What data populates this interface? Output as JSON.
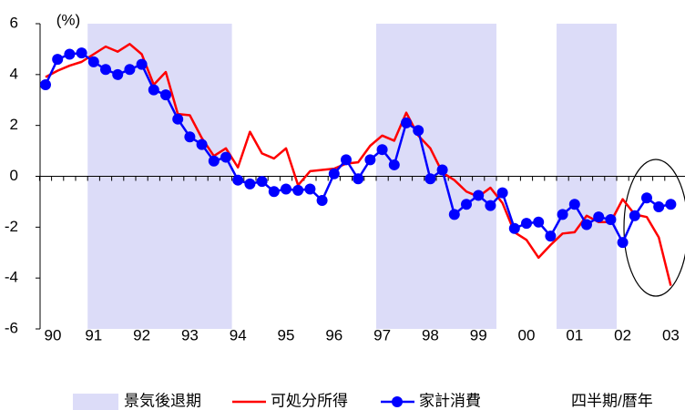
{
  "chart_data": {
    "type": "line",
    "unit_label": "(%)",
    "x_label": "四半期/暦年",
    "recession_label": "景気後退期",
    "recession_color": "#dcdcf8",
    "recessions": [
      [
        4,
        15
      ],
      [
        28,
        37
      ],
      [
        43,
        47
      ]
    ],
    "categories": [
      "90",
      null,
      null,
      null,
      "91",
      null,
      null,
      null,
      "92",
      null,
      null,
      null,
      "93",
      null,
      null,
      null,
      "94",
      null,
      null,
      null,
      "95",
      null,
      null,
      null,
      "96",
      null,
      null,
      null,
      "97",
      null,
      null,
      null,
      "98",
      null,
      null,
      null,
      "99",
      null,
      null,
      null,
      "00",
      null,
      null,
      null,
      "01",
      null,
      null,
      null,
      "02",
      null,
      null,
      null,
      "03"
    ],
    "series": [
      {
        "name": "可処分所得",
        "color": "#ff0000",
        "marker": false,
        "values": [
          3.9,
          4.15,
          4.35,
          4.5,
          4.8,
          5.1,
          4.9,
          5.2,
          4.8,
          3.6,
          4.1,
          2.45,
          2.4,
          1.5,
          0.8,
          1.1,
          0.35,
          1.75,
          0.9,
          0.7,
          1.1,
          -0.35,
          0.2,
          0.25,
          0.3,
          0.5,
          0.55,
          1.2,
          1.6,
          1.4,
          2.5,
          1.6,
          1.1,
          0.15,
          -0.15,
          -0.6,
          -0.8,
          -0.45,
          -1.05,
          -2.2,
          -2.5,
          -3.2,
          -2.7,
          -2.25,
          -2.2,
          -1.55,
          -1.8,
          -1.8,
          -0.9,
          -1.5,
          -1.6,
          -2.4,
          -4.3
        ]
      },
      {
        "name": "家計消費",
        "color": "#0000ff",
        "marker": true,
        "values": [
          3.6,
          4.6,
          4.8,
          4.85,
          4.5,
          4.2,
          4.0,
          4.2,
          4.4,
          3.4,
          3.2,
          2.25,
          1.55,
          1.25,
          0.6,
          0.75,
          -0.15,
          -0.3,
          -0.2,
          -0.6,
          -0.5,
          -0.55,
          -0.5,
          -0.95,
          0.1,
          0.65,
          -0.1,
          0.65,
          1.05,
          0.45,
          2.1,
          1.8,
          -0.1,
          0.25,
          -1.5,
          -1.1,
          -0.75,
          -1.15,
          -0.65,
          -2.05,
          -1.85,
          -1.8,
          -2.35,
          -1.5,
          -1.1,
          -1.9,
          -1.6,
          -1.7,
          -2.6,
          -1.55,
          -0.85,
          -1.2,
          -1.1
        ]
      }
    ],
    "ylim": [
      -6,
      6
    ],
    "yticks": [
      -6,
      -4,
      -2,
      0,
      2,
      4,
      6
    ]
  }
}
